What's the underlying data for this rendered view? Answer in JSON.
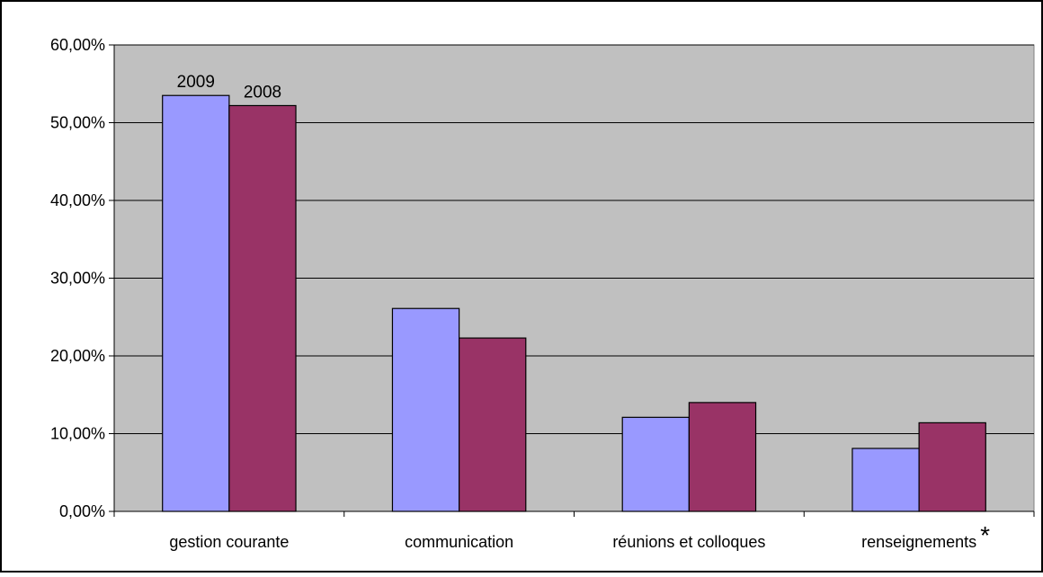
{
  "chart_data": {
    "type": "bar",
    "title": "",
    "xlabel": "",
    "ylabel": "",
    "categories": [
      "gestion courante",
      "communication",
      "réunions et colloques",
      "renseignements"
    ],
    "category_footnote_marks": [
      "",
      "",
      "",
      "*"
    ],
    "series": [
      {
        "name": "2009",
        "values": [
          53.5,
          26.1,
          12.1,
          8.1
        ],
        "color": "#9999ff"
      },
      {
        "name": "2008",
        "values": [
          52.2,
          22.3,
          14.0,
          11.4
        ],
        "color": "#993366"
      }
    ],
    "data_labels": [
      {
        "series": 0,
        "category": 0,
        "text": "2009"
      },
      {
        "series": 1,
        "category": 0,
        "text": "2008"
      }
    ],
    "ylim": [
      0,
      60
    ],
    "yticks": [
      0,
      10,
      20,
      30,
      40,
      50,
      60
    ],
    "ytick_labels": [
      "0,00%",
      "10,00%",
      "20,00%",
      "30,00%",
      "40,00%",
      "50,00%",
      "60,00%"
    ],
    "grid": true,
    "legend": "none",
    "plot_background": "#c0c0c0",
    "gridline_color": "#000000"
  }
}
